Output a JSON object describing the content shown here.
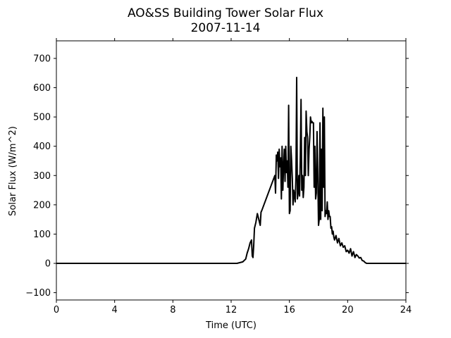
{
  "chart_data": {
    "type": "line",
    "title": "AO&SS Building Tower Solar Flux",
    "subtitle": "2007-11-14",
    "xlabel": "Time (UTC)",
    "ylabel": "Solar Flux (W/m^2)",
    "xlim": [
      0,
      24
    ],
    "ylim": [
      -125,
      760
    ],
    "xticks": [
      0,
      4,
      8,
      12,
      16,
      20,
      24
    ],
    "yticks": [
      -100,
      0,
      100,
      200,
      300,
      400,
      500,
      600,
      700
    ],
    "xtick_labels": [
      "0",
      "4",
      "8",
      "12",
      "16",
      "20",
      "24"
    ],
    "ytick_labels": [
      "−100",
      "0",
      "100",
      "200",
      "300",
      "400",
      "500",
      "600",
      "700"
    ],
    "grid": false,
    "line_color": "#000000",
    "series": [
      {
        "x": [
          0,
          12.4,
          12.8,
          13.0,
          13.1,
          13.2,
          13.3,
          13.4,
          13.45,
          13.5,
          13.55,
          13.6,
          13.65,
          13.7,
          13.8,
          14.0,
          14.05,
          14.1,
          15.0,
          15.05,
          15.1,
          15.15,
          15.2,
          15.25,
          15.3,
          15.35,
          15.4,
          15.45,
          15.5,
          15.55,
          15.6,
          15.65,
          15.7,
          15.75,
          15.8,
          15.85,
          15.9,
          15.95,
          16.0,
          16.05,
          16.1,
          16.15,
          16.2,
          16.25,
          16.3,
          16.35,
          16.4,
          16.45,
          16.5,
          16.55,
          16.6,
          16.65,
          16.7,
          16.75,
          16.8,
          16.85,
          16.9,
          16.95,
          17.0,
          17.05,
          17.1,
          17.15,
          17.2,
          17.25,
          17.3,
          17.35,
          17.4,
          17.45,
          17.5,
          17.55,
          17.6,
          17.65,
          17.7,
          17.75,
          17.8,
          17.85,
          17.9,
          17.95,
          18.0,
          18.05,
          18.1,
          18.15,
          18.2,
          18.25,
          18.3,
          18.35,
          18.4,
          18.45,
          18.5,
          18.55,
          18.6,
          18.65,
          18.7,
          18.75,
          18.8,
          18.85,
          18.9,
          18.95,
          19.0,
          19.05,
          19.1,
          19.2,
          19.3,
          19.4,
          19.5,
          19.6,
          19.7,
          19.8,
          19.9,
          20.0,
          20.1,
          20.2,
          20.3,
          20.4,
          20.5,
          20.6,
          20.7,
          20.8,
          20.9,
          21.0,
          21.1,
          21.2,
          21.3,
          21.4,
          21.5,
          21.7,
          22.0,
          22.3,
          22.6,
          23.0,
          23.5,
          24.0
        ],
        "y": [
          0,
          0,
          5,
          15,
          35,
          50,
          70,
          80,
          25,
          20,
          60,
          120,
          130,
          140,
          170,
          130,
          175,
          180,
          300,
          240,
          370,
          350,
          380,
          290,
          390,
          330,
          360,
          220,
          400,
          250,
          330,
          390,
          280,
          400,
          310,
          350,
          260,
          540,
          170,
          180,
          400,
          350,
          290,
          200,
          250,
          230,
          210,
          300,
          635,
          220,
          240,
          300,
          230,
          370,
          560,
          250,
          300,
          225,
          260,
          430,
          300,
          520,
          450,
          430,
          300,
          390,
          430,
          500,
          480,
          485,
          480,
          480,
          260,
          400,
          220,
          240,
          450,
          300,
          130,
          150,
          480,
          150,
          390,
          180,
          530,
          260,
          500,
          160,
          180,
          170,
          210,
          150,
          180,
          160,
          160,
          120,
          125,
          100,
          110,
          90,
          80,
          95,
          70,
          85,
          60,
          70,
          55,
          60,
          40,
          45,
          35,
          50,
          25,
          40,
          20,
          30,
          25,
          18,
          20,
          10,
          8,
          3,
          0,
          0,
          0,
          0,
          0,
          0,
          0,
          0,
          0,
          0
        ]
      }
    ]
  }
}
